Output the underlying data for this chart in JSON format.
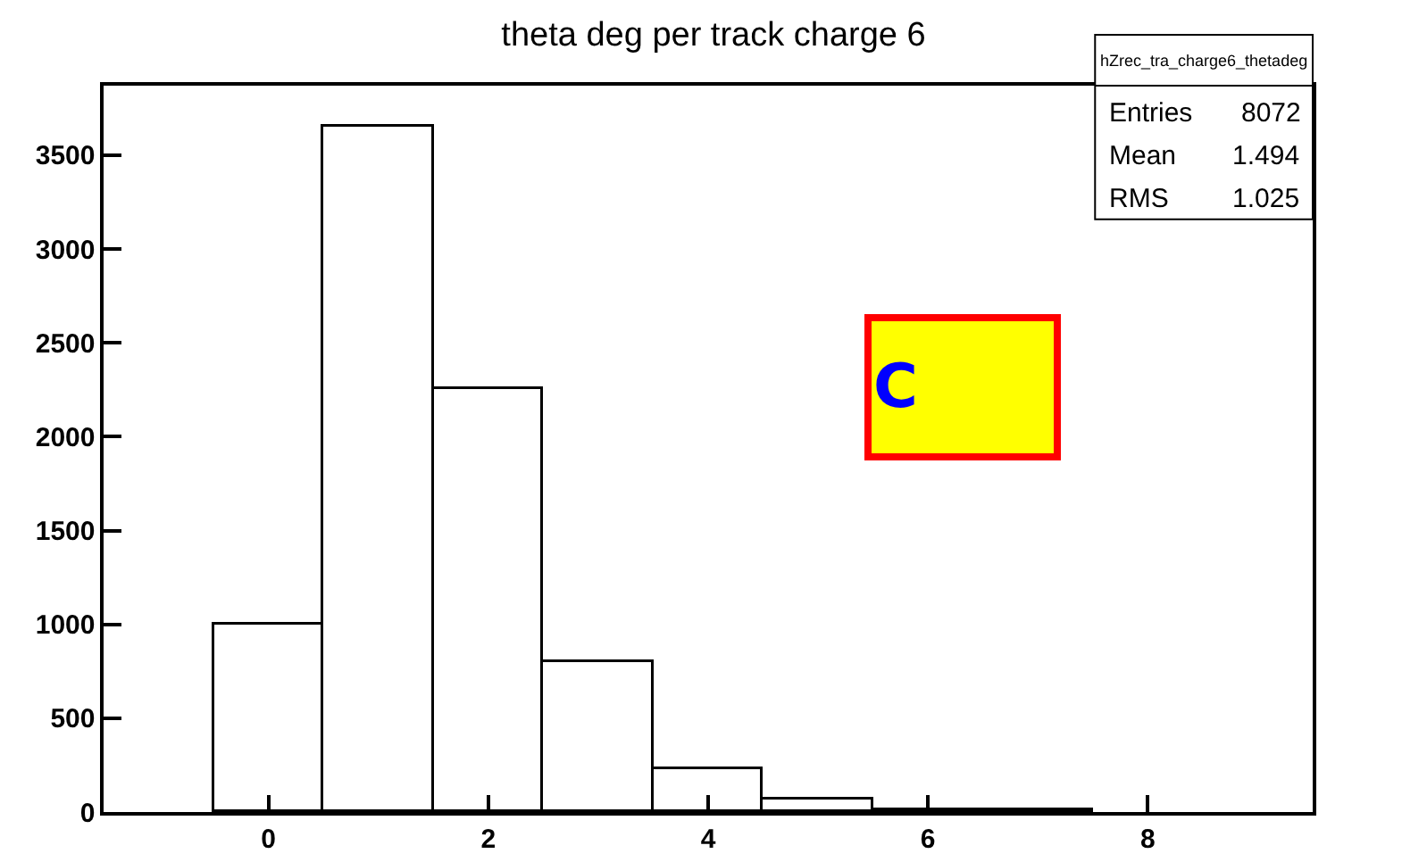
{
  "chart_data": {
    "type": "histogram",
    "title": "theta deg per track charge 6",
    "bins": [
      -0.5,
      0.5,
      1.5,
      2.5,
      3.5,
      4.5,
      5.5,
      6.5,
      7.5
    ],
    "values": [
      1000,
      3650,
      2250,
      800,
      230,
      70,
      10,
      10
    ],
    "color": "#ffffff",
    "xlim": [
      -1.5,
      9.5
    ],
    "xticks": [
      0,
      2,
      4,
      6,
      8
    ],
    "ylim": [
      0,
      3870
    ],
    "yticks": [
      0,
      500,
      1000,
      1500,
      2000,
      2500,
      3000,
      3500
    ],
    "grid": false,
    "annotations": [
      "hZrec_tra_charge6_thetadeg",
      "Entries 8072",
      "Mean 1.494",
      "RMS 1.025",
      "C"
    ]
  }
}
